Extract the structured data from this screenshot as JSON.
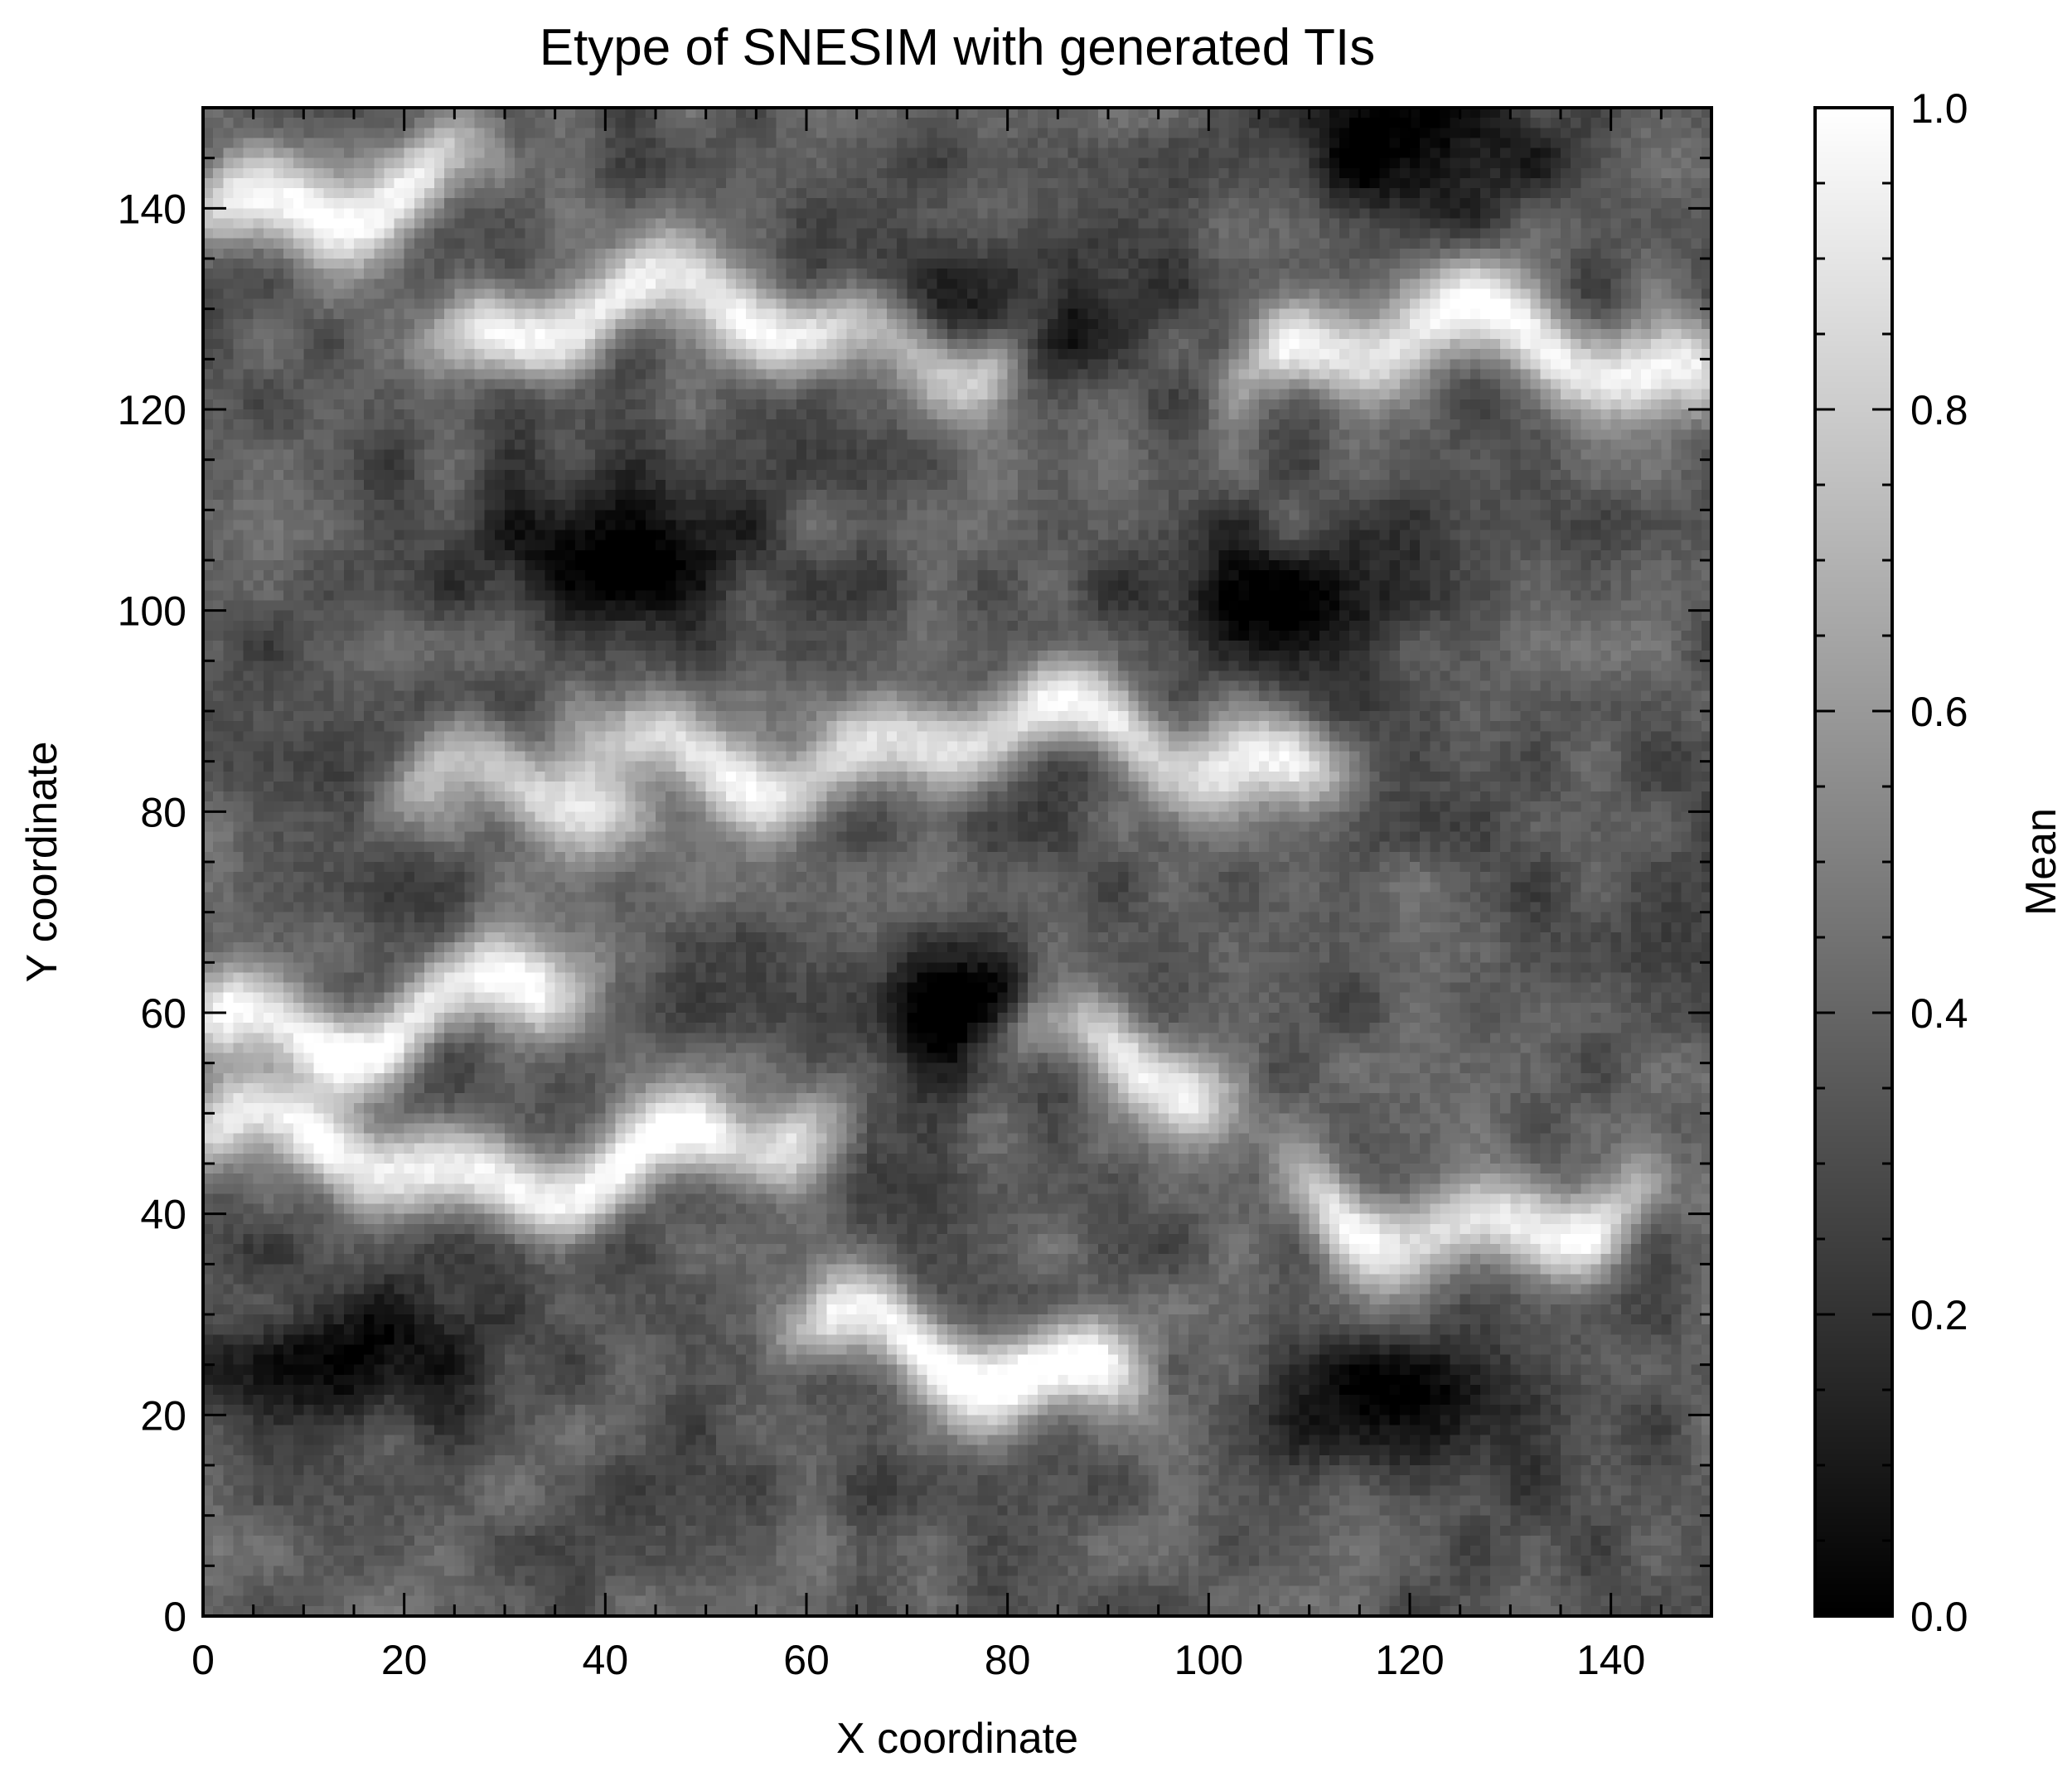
{
  "chart_data": {
    "type": "heatmap",
    "title": "Etype of SNESIM with generated TIs",
    "xlabel": "X coordinate",
    "ylabel": "Y coordinate",
    "xlim": [
      0,
      150
    ],
    "ylim": [
      0,
      150
    ],
    "grid_size": [
      150,
      150
    ],
    "colormap": "gray",
    "x_ticks": [
      "0",
      "20",
      "40",
      "60",
      "80",
      "100",
      "120",
      "140"
    ],
    "y_ticks": [
      "0",
      "20",
      "40",
      "60",
      "80",
      "100",
      "120",
      "140"
    ],
    "colorbar": {
      "label": "Mean",
      "range": [
        0.0,
        1.0
      ],
      "ticks": [
        "0.0",
        "0.2",
        "0.4",
        "0.6",
        "0.8",
        "1.0"
      ]
    },
    "bright_bands": [
      {
        "y": 142,
        "x_from": 0,
        "x_to": 25,
        "value": 0.88
      },
      {
        "y": 128,
        "x_from": 25,
        "x_to": 80,
        "value": 0.85
      },
      {
        "y": 125,
        "x_from": 105,
        "x_to": 150,
        "value": 0.9
      },
      {
        "y": 86,
        "x_from": 40,
        "x_to": 110,
        "value": 0.85
      },
      {
        "y": 80,
        "x_from": 20,
        "x_to": 40,
        "value": 0.8
      },
      {
        "y": 60,
        "x_from": 0,
        "x_to": 35,
        "value": 0.95
      },
      {
        "y": 55,
        "x_from": 80,
        "x_to": 100,
        "value": 0.85
      },
      {
        "y": 45,
        "x_from": 0,
        "x_to": 60,
        "value": 0.9
      },
      {
        "y": 40,
        "x_from": 110,
        "x_to": 140,
        "value": 0.88
      },
      {
        "y": 26,
        "x_from": 60,
        "x_to": 90,
        "value": 0.95
      }
    ],
    "dark_regions": [
      {
        "x": 40,
        "y": 105,
        "value": 0.08
      },
      {
        "x": 15,
        "y": 25,
        "value": 0.05
      },
      {
        "x": 120,
        "y": 20,
        "value": 0.1
      },
      {
        "x": 75,
        "y": 60,
        "value": 0.08
      },
      {
        "x": 120,
        "y": 145,
        "value": 0.12
      },
      {
        "x": 105,
        "y": 100,
        "value": 0.1
      },
      {
        "x": 80,
        "y": 130,
        "value": 0.1
      }
    ],
    "colors": {
      "low": "#000000",
      "high": "#ffffff",
      "frame": "#000000",
      "background": "#ffffff"
    }
  }
}
